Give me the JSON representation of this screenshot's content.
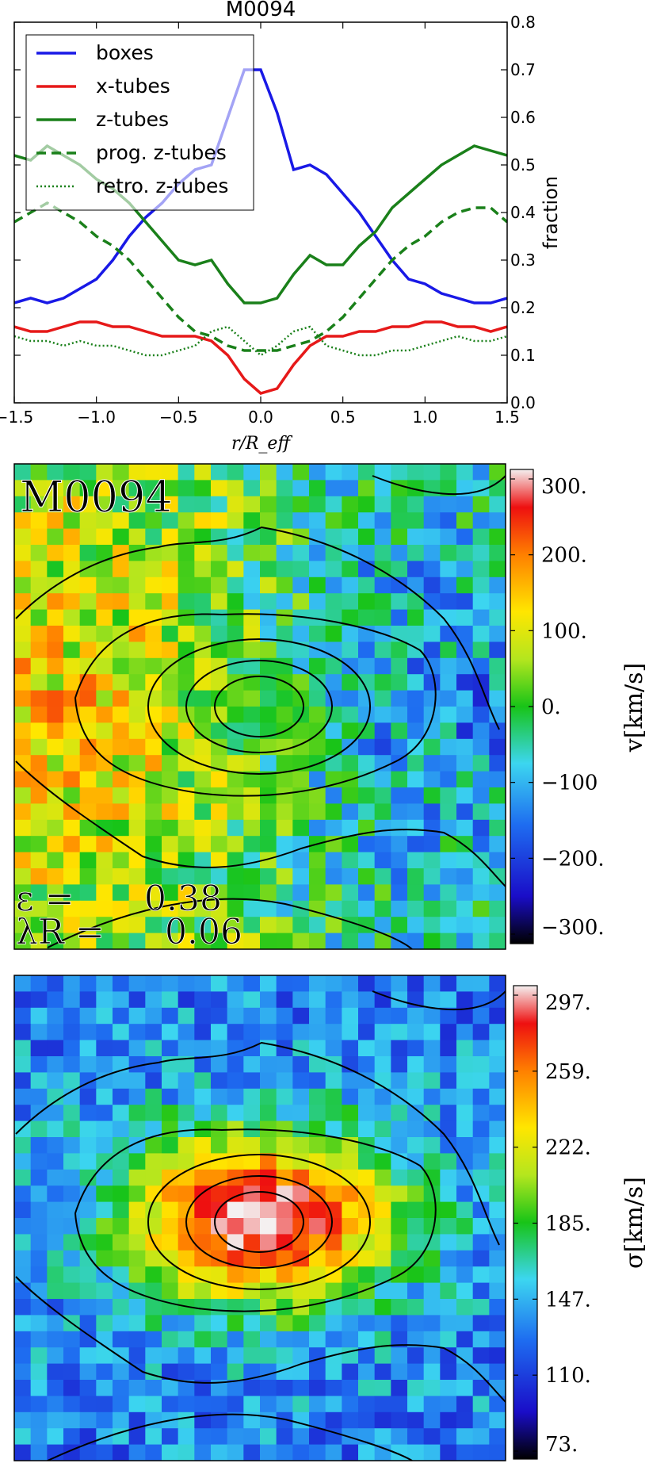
{
  "chart_data": [
    {
      "type": "line",
      "title": "M0094",
      "xlabel": "r/R_eff",
      "ylabel": "fraction",
      "xlim": [
        -1.5,
        1.5
      ],
      "ylim": [
        0.0,
        0.8
      ],
      "grid": false,
      "legend_position": "top-left",
      "x_ticks": [
        "−1.5",
        "−1.0",
        "−0.5",
        "0.0",
        "0.5",
        "1.0",
        "1.5"
      ],
      "y_ticks": [
        "0.0",
        "0.1",
        "0.2",
        "0.3",
        "0.4",
        "0.5",
        "0.6",
        "0.7",
        "0.8"
      ],
      "x": [
        -1.5,
        -1.4,
        -1.3,
        -1.2,
        -1.1,
        -1.0,
        -0.9,
        -0.8,
        -0.7,
        -0.6,
        -0.5,
        -0.4,
        -0.3,
        -0.2,
        -0.1,
        0.0,
        0.1,
        0.2,
        0.3,
        0.4,
        0.5,
        0.6,
        0.7,
        0.8,
        0.9,
        1.0,
        1.1,
        1.2,
        1.3,
        1.4,
        1.5
      ],
      "series": [
        {
          "name": "boxes",
          "style": "solid",
          "color": "#1919e6",
          "values": [
            0.21,
            0.22,
            0.21,
            0.22,
            0.24,
            0.26,
            0.3,
            0.35,
            0.39,
            0.42,
            0.46,
            0.49,
            0.5,
            0.6,
            0.7,
            0.7,
            0.61,
            0.49,
            0.5,
            0.48,
            0.44,
            0.4,
            0.35,
            0.3,
            0.26,
            0.25,
            0.23,
            0.22,
            0.21,
            0.21,
            0.22
          ]
        },
        {
          "name": "x-tubes",
          "style": "solid",
          "color": "#e61919",
          "values": [
            0.16,
            0.15,
            0.15,
            0.16,
            0.17,
            0.17,
            0.16,
            0.16,
            0.15,
            0.14,
            0.14,
            0.14,
            0.13,
            0.1,
            0.05,
            0.02,
            0.03,
            0.08,
            0.12,
            0.14,
            0.14,
            0.15,
            0.15,
            0.16,
            0.16,
            0.17,
            0.17,
            0.16,
            0.16,
            0.15,
            0.16
          ]
        },
        {
          "name": "z-tubes",
          "style": "solid",
          "color": "#1a801a",
          "values": [
            0.52,
            0.51,
            0.54,
            0.52,
            0.5,
            0.47,
            0.45,
            0.42,
            0.38,
            0.34,
            0.3,
            0.29,
            0.3,
            0.25,
            0.21,
            0.21,
            0.22,
            0.27,
            0.31,
            0.29,
            0.29,
            0.33,
            0.36,
            0.41,
            0.44,
            0.47,
            0.5,
            0.52,
            0.54,
            0.53,
            0.52
          ]
        },
        {
          "name": "prog. z-tubes",
          "style": "dashed",
          "color": "#1a801a",
          "values": [
            0.38,
            0.4,
            0.42,
            0.4,
            0.38,
            0.35,
            0.33,
            0.3,
            0.26,
            0.22,
            0.18,
            0.15,
            0.14,
            0.12,
            0.11,
            0.11,
            0.11,
            0.12,
            0.13,
            0.15,
            0.18,
            0.22,
            0.26,
            0.3,
            0.33,
            0.35,
            0.38,
            0.4,
            0.41,
            0.41,
            0.38
          ]
        },
        {
          "name": "retro. z-tubes",
          "style": "dotted",
          "color": "#1a801a",
          "values": [
            0.14,
            0.13,
            0.13,
            0.12,
            0.13,
            0.12,
            0.12,
            0.11,
            0.1,
            0.1,
            0.11,
            0.12,
            0.15,
            0.16,
            0.13,
            0.1,
            0.12,
            0.15,
            0.16,
            0.12,
            0.11,
            0.1,
            0.1,
            0.11,
            0.11,
            0.12,
            0.13,
            0.14,
            0.13,
            0.13,
            0.14
          ]
        }
      ]
    },
    {
      "type": "heatmap",
      "label": "M0094",
      "colorbar_label": "v[km/s]",
      "colorbar_ticks": [
        "300.",
        "200.",
        "100.",
        "0.",
        "−100",
        "−200.",
        "−300."
      ],
      "vmin": -300,
      "vmax": 300,
      "epsilon_label": "ε =",
      "epsilon": "0.38",
      "lambda_label": "λR =",
      "lambda_r": "0.06"
    },
    {
      "type": "heatmap",
      "colorbar_label": "σ[km/s]",
      "colorbar_ticks": [
        "297.",
        "259.",
        "222.",
        "185.",
        "147.",
        "110.",
        "73."
      ],
      "vmin": 73,
      "vmax": 297
    }
  ]
}
